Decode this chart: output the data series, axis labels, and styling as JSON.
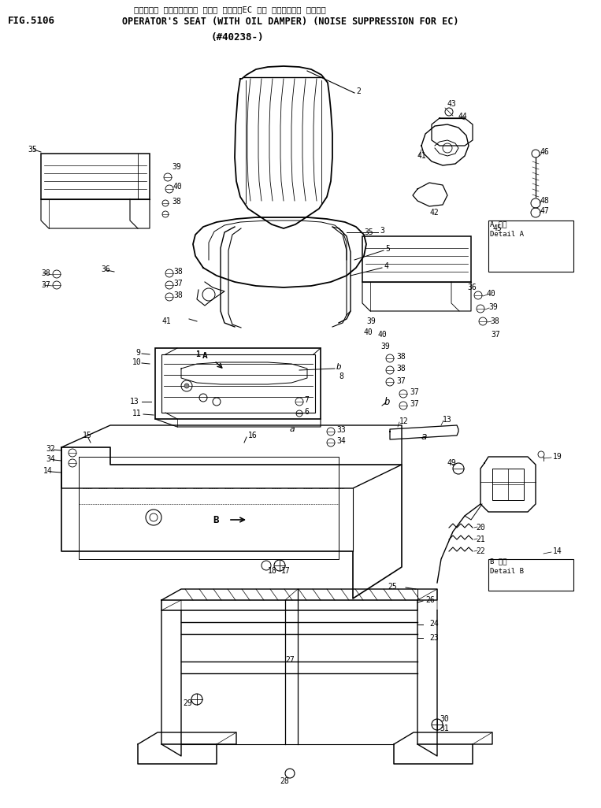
{
  "bg_color": "#ffffff",
  "line_color": "#000000",
  "title_jp": "オペレータ シート（オイル ダンパ ツキ）（EC ムケ チイソウオン ショウ）",
  "title_en": "OPERATOR'S SEAT (WITH OIL DAMPER) (NOISE SUPPRESSION FOR EC)",
  "fig_no": "FIG.5106",
  "part_no": "(#40238-)"
}
